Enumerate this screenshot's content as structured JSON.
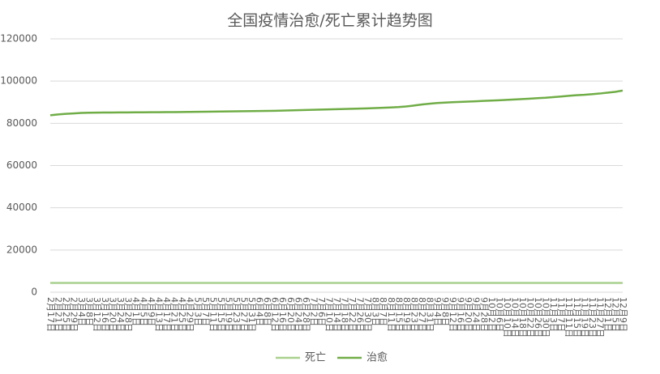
{
  "chart_data": {
    "type": "line",
    "title": "全国疫情治愈/死亡累计趋势图",
    "categories": [
      "2月17日",
      "2月21日",
      "2月25日",
      "2月29日",
      "3月4日",
      "3月8日",
      "3月12日",
      "3月16日",
      "3月20日",
      "3月24日",
      "3月28日",
      "4月1日",
      "4月5日",
      "4月9日",
      "4月13日",
      "4月17日",
      "4月21日",
      "4月25日",
      "4月29日",
      "5月3日",
      "5月7日",
      "5月11日",
      "5月15日",
      "5月19日",
      "5月23日",
      "5月27日",
      "5月31日",
      "6月4日",
      "6月8日",
      "6月12日",
      "6月16日",
      "6月20日",
      "6月24日",
      "6月28日",
      "7月2日",
      "7月6日",
      "7月10日",
      "7月14日",
      "7月18日",
      "7月22日",
      "7月26日",
      "7月30日",
      "8月3日",
      "8月7日",
      "8月11日",
      "8月15日",
      "8月19日",
      "8月23日",
      "8月27日",
      "8月31日",
      "9月4日",
      "9月8日",
      "9月12日",
      "9月16日",
      "9月20日",
      "9月24日",
      "9月28日",
      "10月2日",
      "10月6日",
      "10月10日",
      "10月14日",
      "10月18日",
      "10月22日",
      "10月26日",
      "10月30日",
      "11月3日",
      "11月7日",
      "11月11日",
      "11月15日",
      "11月19日",
      "11月23日",
      "11月27日",
      "12月1日",
      "12月5日",
      "12月9日"
    ],
    "series": [
      {
        "name": "死亡",
        "color": "#a9d18e",
        "values": [
          4400,
          4400,
          4400,
          4400,
          4400,
          4400,
          4400,
          4400,
          4400,
          4400,
          4400,
          4400,
          4400,
          4400,
          4400,
          4400,
          4400,
          4400,
          4400,
          4400,
          4400,
          4400,
          4400,
          4400,
          4400,
          4400,
          4400,
          4400,
          4400,
          4400,
          4400,
          4400,
          4400,
          4400,
          4400,
          4400,
          4400,
          4400,
          4400,
          4400,
          4400,
          4400,
          4400,
          4400,
          4400,
          4400,
          4400,
          4400,
          4400,
          4400,
          4400,
          4400,
          4400,
          4400,
          4400,
          4400,
          4400,
          4400,
          4400,
          4400,
          4400,
          4400,
          4400,
          4400,
          4400,
          4400,
          4400,
          4400,
          4400,
          4400,
          4400,
          4400,
          4400,
          4400,
          4400
        ]
      },
      {
        "name": "治愈",
        "color": "#70ad47",
        "values": [
          83800,
          84200,
          84500,
          84700,
          84900,
          85000,
          85050,
          85100,
          85100,
          85150,
          85150,
          85200,
          85200,
          85250,
          85250,
          85300,
          85300,
          85350,
          85400,
          85450,
          85500,
          85550,
          85600,
          85650,
          85700,
          85750,
          85800,
          85850,
          85900,
          85950,
          86000,
          86100,
          86200,
          86300,
          86400,
          86500,
          86600,
          86700,
          86800,
          86900,
          87000,
          87100,
          87200,
          87350,
          87500,
          87700,
          88000,
          88400,
          88900,
          89300,
          89600,
          89800,
          90000,
          90150,
          90300,
          90450,
          90600,
          90750,
          90900,
          91100,
          91300,
          91500,
          91700,
          91900,
          92100,
          92400,
          92700,
          93000,
          93300,
          93500,
          93800,
          94100,
          94500,
          94900,
          95500
        ]
      }
    ],
    "ylim": [
      0,
      120000
    ],
    "yticks": [
      0,
      20000,
      40000,
      60000,
      80000,
      100000,
      120000
    ],
    "grid": true,
    "legend": "bottom"
  }
}
